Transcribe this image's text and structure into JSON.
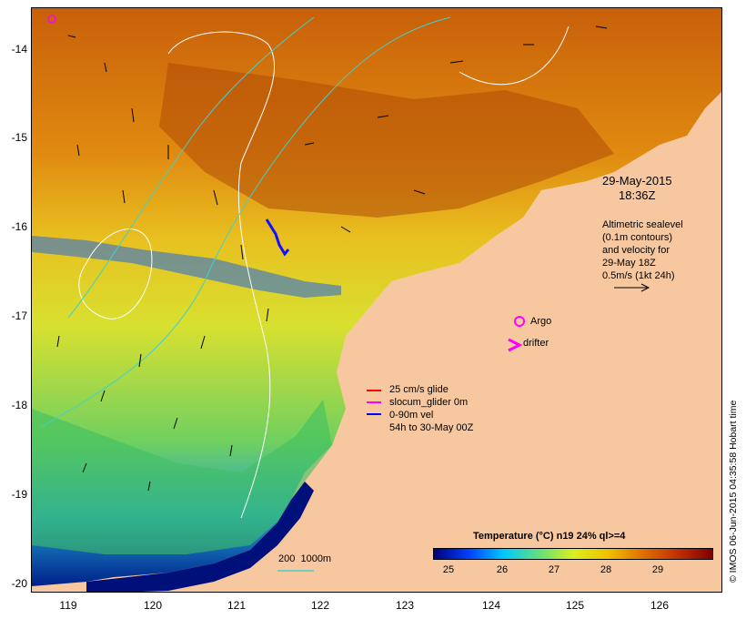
{
  "map": {
    "y_ticks": [
      "-14",
      "-15",
      "-16",
      "-17",
      "-18",
      "-19",
      "-20"
    ],
    "x_ticks": [
      "119",
      "120",
      "121",
      "122",
      "123",
      "124",
      "125",
      "126"
    ],
    "land_color": "#f7c8a0",
    "date_line1": "29-May-2015",
    "date_line2": "18:36Z",
    "altimetry_lines": [
      "Altimetric sealevel",
      "(0.1m contours)",
      "and velocity for",
      "29-May 18Z",
      "0.5m/s (1kt 24h)"
    ],
    "argo_label": "Argo",
    "drifter_label": "drifter",
    "legend": {
      "glide": "25 cm/s glide",
      "slocum": "slocum_glider 0m",
      "vel": "0-90m vel",
      "span": "54h to 30-May 00Z"
    },
    "legend_colors": {
      "glide": "#ff0000",
      "slocum": "#ff00ff",
      "vel": "#0000ff"
    },
    "depth_scale": "200  1000m",
    "credit": "© IMOS 06-Jun-2015 04:35:58 Hobart time",
    "colorbar": {
      "title": "Temperature (°C) n19 24% ql>=4",
      "ticks": [
        "25",
        "26",
        "27",
        "28",
        "29"
      ],
      "colors": [
        "#00007a",
        "#0040ff",
        "#00c8ff",
        "#60e080",
        "#d8f020",
        "#f0c000",
        "#e07000",
        "#c03000",
        "#800000"
      ]
    }
  }
}
